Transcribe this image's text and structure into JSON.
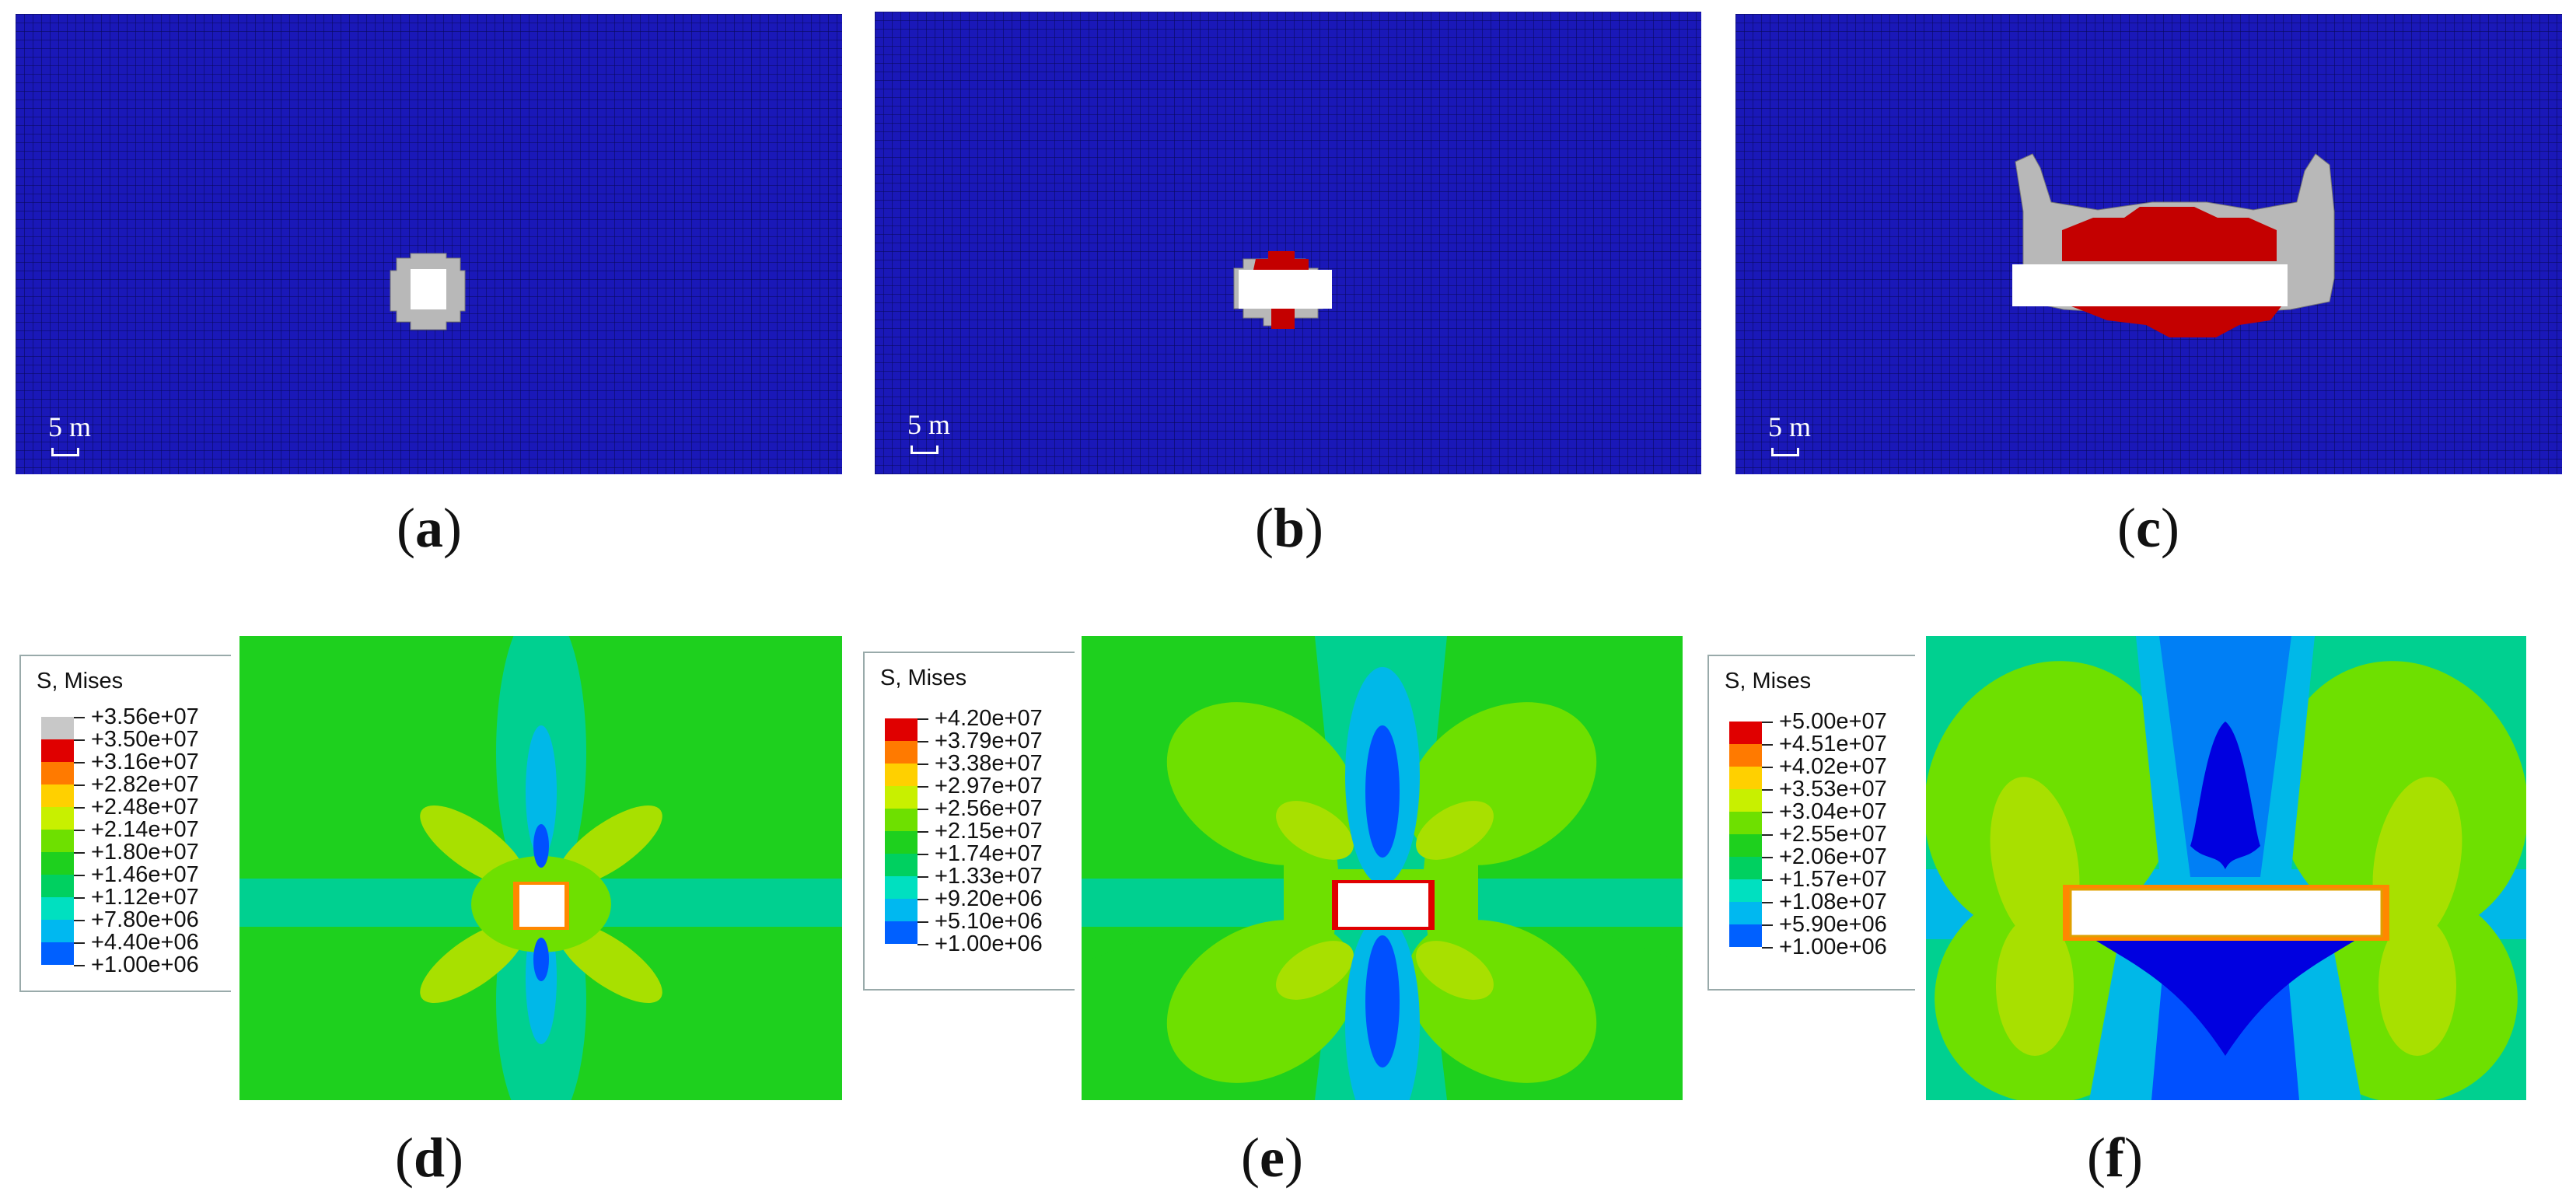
{
  "panels_top": [
    {
      "id": "a",
      "scale_label": "5 m",
      "caption": "a"
    },
    {
      "id": "b",
      "scale_label": "5 m",
      "caption": "b"
    },
    {
      "id": "c",
      "scale_label": "5 m",
      "caption": "c"
    }
  ],
  "panels_bottom": [
    {
      "id": "d",
      "caption": "d",
      "legend_title": "S, Mises",
      "values": [
        "+3.56e+07",
        "+3.50e+07",
        "+3.16e+07",
        "+2.82e+07",
        "+2.48e+07",
        "+2.14e+07",
        "+1.80e+07",
        "+1.46e+07",
        "+1.12e+07",
        "+7.80e+06",
        "+4.40e+06",
        "+1.00e+06"
      ],
      "colors": [
        "#c8c8c8",
        "#e00000",
        "#ff7a00",
        "#ffd000",
        "#c8f000",
        "#6ee000",
        "#1ed01e",
        "#00d060",
        "#00e0c0",
        "#00b8f0",
        "#0060ff",
        "#0000e0"
      ]
    },
    {
      "id": "e",
      "caption": "e",
      "legend_title": "S, Mises",
      "values": [
        "+4.20e+07",
        "+3.79e+07",
        "+3.38e+07",
        "+2.97e+07",
        "+2.56e+07",
        "+2.15e+07",
        "+1.74e+07",
        "+1.33e+07",
        "+9.20e+06",
        "+5.10e+06",
        "+1.00e+06"
      ],
      "colors": [
        "#e00000",
        "#ff7a00",
        "#ffd000",
        "#c8f000",
        "#6ee000",
        "#1ed01e",
        "#00d060",
        "#00e0c0",
        "#00b8f0",
        "#0060ff",
        "#0000e0"
      ]
    },
    {
      "id": "f",
      "caption": "f",
      "legend_title": "S, Mises",
      "values": [
        "+5.00e+07",
        "+4.51e+07",
        "+4.02e+07",
        "+3.53e+07",
        "+3.04e+07",
        "+2.55e+07",
        "+2.06e+07",
        "+1.57e+07",
        "+1.08e+07",
        "+5.90e+06",
        "+1.00e+06"
      ],
      "colors": [
        "#e00000",
        "#ff7a00",
        "#ffd000",
        "#c8f000",
        "#6ee000",
        "#1ed01e",
        "#00d060",
        "#00e0c0",
        "#00b8f0",
        "#0060ff",
        "#0000e0"
      ]
    }
  ],
  "colors": {
    "mesh_blue": "#1a18b8",
    "failed_gray": "#b8b8b8",
    "failed_red": "#c40000",
    "field_green": "#1ed01e",
    "band_teal": "#00d090",
    "low_cyan": "#00b8e8",
    "low_blue": "#0050ff",
    "mid_yellowgreen": "#a8e000",
    "hot_orange": "#ff8800",
    "hot_red": "#e00000"
  }
}
